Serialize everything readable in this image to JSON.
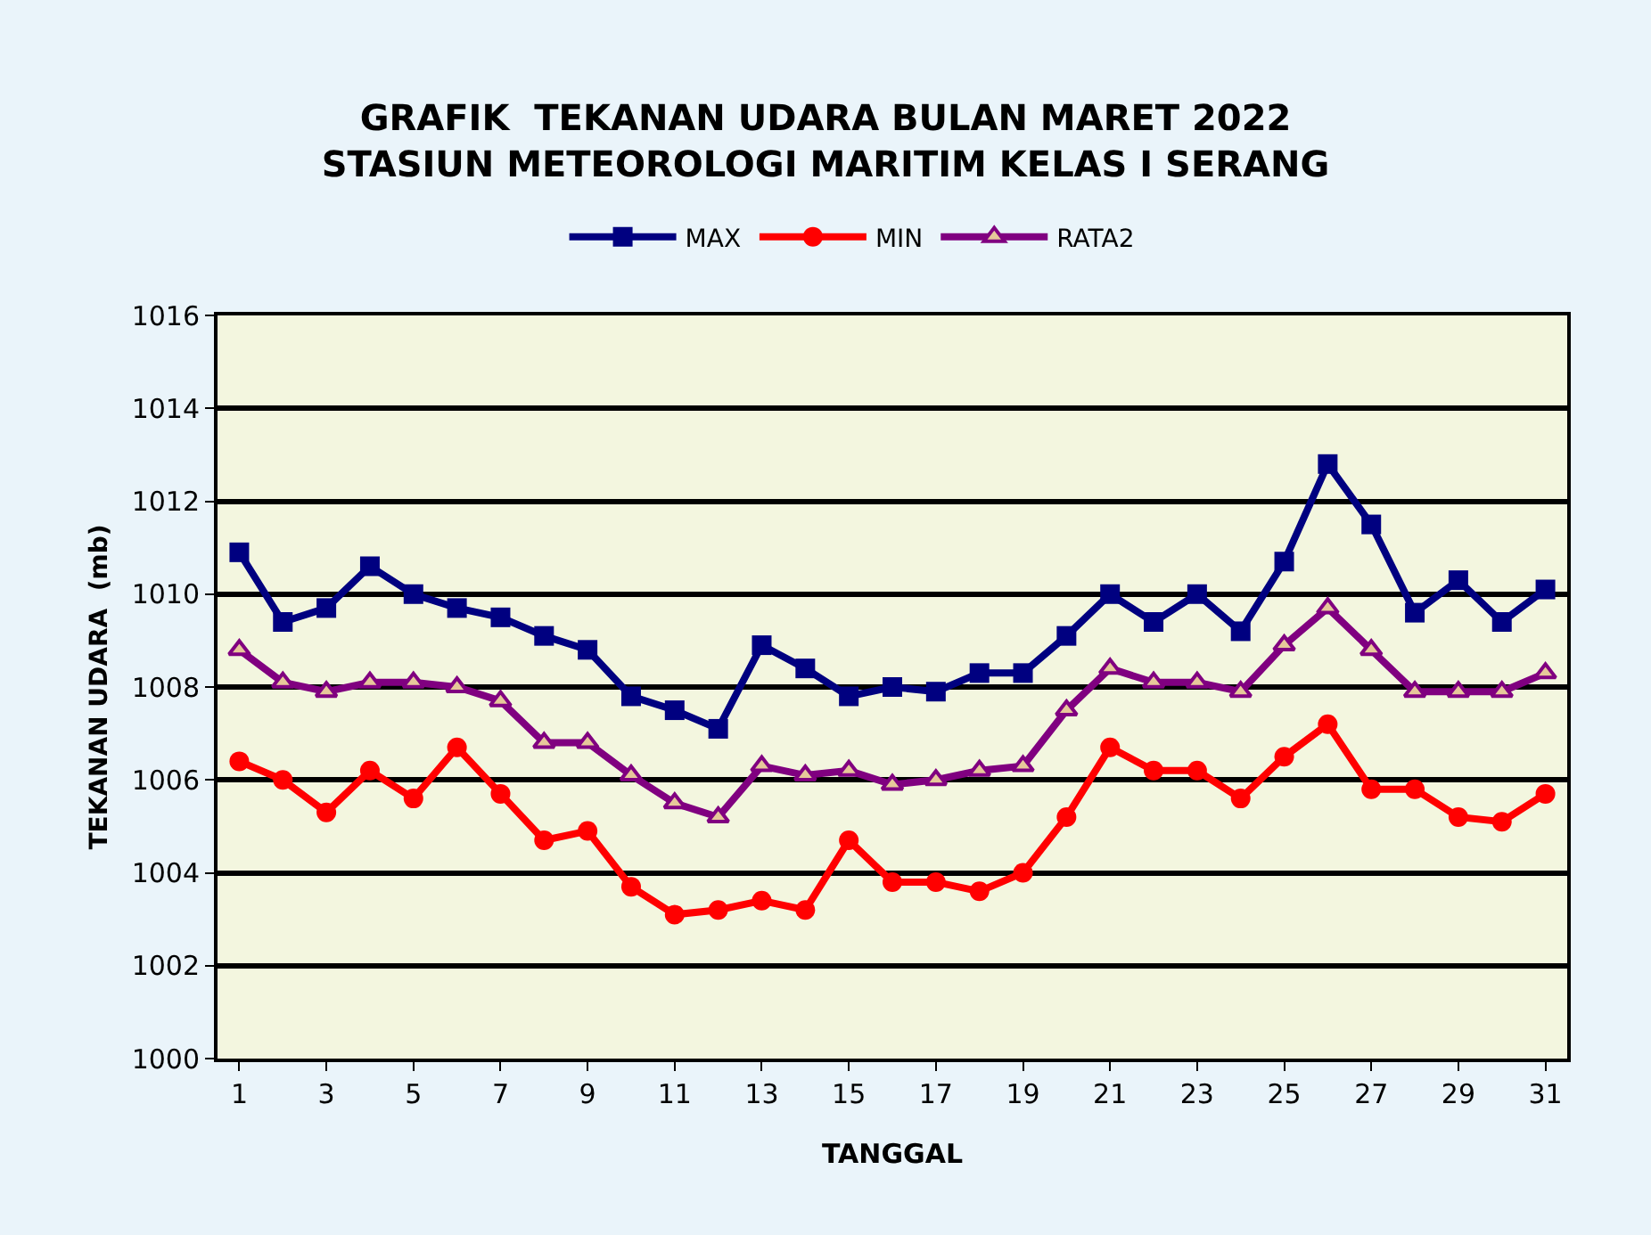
{
  "chart_data": {
    "type": "line",
    "title": "GRAFIK  TEKANAN UDARA BULAN MARET 2022\nSTASIUN METEOROLOGI MARITIM KELAS I SERANG",
    "xlabel": "TANGGAL",
    "ylabel": "TEKANAN UDARA  (mb)",
    "x": [
      1,
      2,
      3,
      4,
      5,
      6,
      7,
      8,
      9,
      10,
      11,
      12,
      13,
      14,
      15,
      16,
      17,
      18,
      19,
      20,
      21,
      22,
      23,
      24,
      25,
      26,
      27,
      28,
      29,
      30,
      31
    ],
    "series": [
      {
        "name": "MAX",
        "color": "#000080",
        "marker": "square",
        "values": [
          1010.9,
          1009.4,
          1009.7,
          1010.6,
          1010.0,
          1009.7,
          1009.5,
          1009.1,
          1008.8,
          1007.8,
          1007.5,
          1007.1,
          1008.9,
          1008.4,
          1007.8,
          1008.0,
          1007.9,
          1008.3,
          1008.3,
          1009.1,
          1010.0,
          1009.4,
          1010.0,
          1009.2,
          1010.7,
          1012.8,
          1011.5,
          1009.6,
          1010.3,
          1009.4,
          1010.1
        ]
      },
      {
        "name": "MIN",
        "color": "#ff0000",
        "marker": "circle",
        "values": [
          1006.4,
          1006.0,
          1005.3,
          1006.2,
          1005.6,
          1006.7,
          1005.7,
          1004.7,
          1004.9,
          1003.7,
          1003.1,
          1003.2,
          1003.4,
          1003.2,
          1004.7,
          1003.8,
          1003.8,
          1003.6,
          1004.0,
          1005.2,
          1006.7,
          1006.2,
          1006.2,
          1005.6,
          1006.5,
          1007.2,
          1005.8,
          1005.8,
          1005.2,
          1005.1,
          1005.7
        ]
      },
      {
        "name": "RATA2",
        "color": "#800080",
        "marker": "triangle",
        "values": [
          1008.8,
          1008.1,
          1007.9,
          1008.1,
          1008.1,
          1008.0,
          1007.7,
          1006.8,
          1006.8,
          1006.1,
          1005.5,
          1005.2,
          1006.3,
          1006.1,
          1006.2,
          1005.9,
          1006.0,
          1006.2,
          1006.3,
          1007.5,
          1008.4,
          1008.1,
          1008.1,
          1007.9,
          1008.9,
          1009.7,
          1008.8,
          1007.9,
          1007.9,
          1007.9,
          1008.3
        ]
      }
    ],
    "xlim": [
      0.5,
      31.5
    ],
    "xticks": [
      1,
      3,
      5,
      7,
      9,
      11,
      13,
      15,
      17,
      19,
      21,
      23,
      25,
      27,
      29,
      31
    ],
    "ylim": [
      1000,
      1016
    ],
    "yticks": [
      1000,
      1002,
      1004,
      1006,
      1008,
      1010,
      1012,
      1014,
      1016
    ],
    "grid": "y",
    "legend": "top",
    "line_style": "solid"
  }
}
